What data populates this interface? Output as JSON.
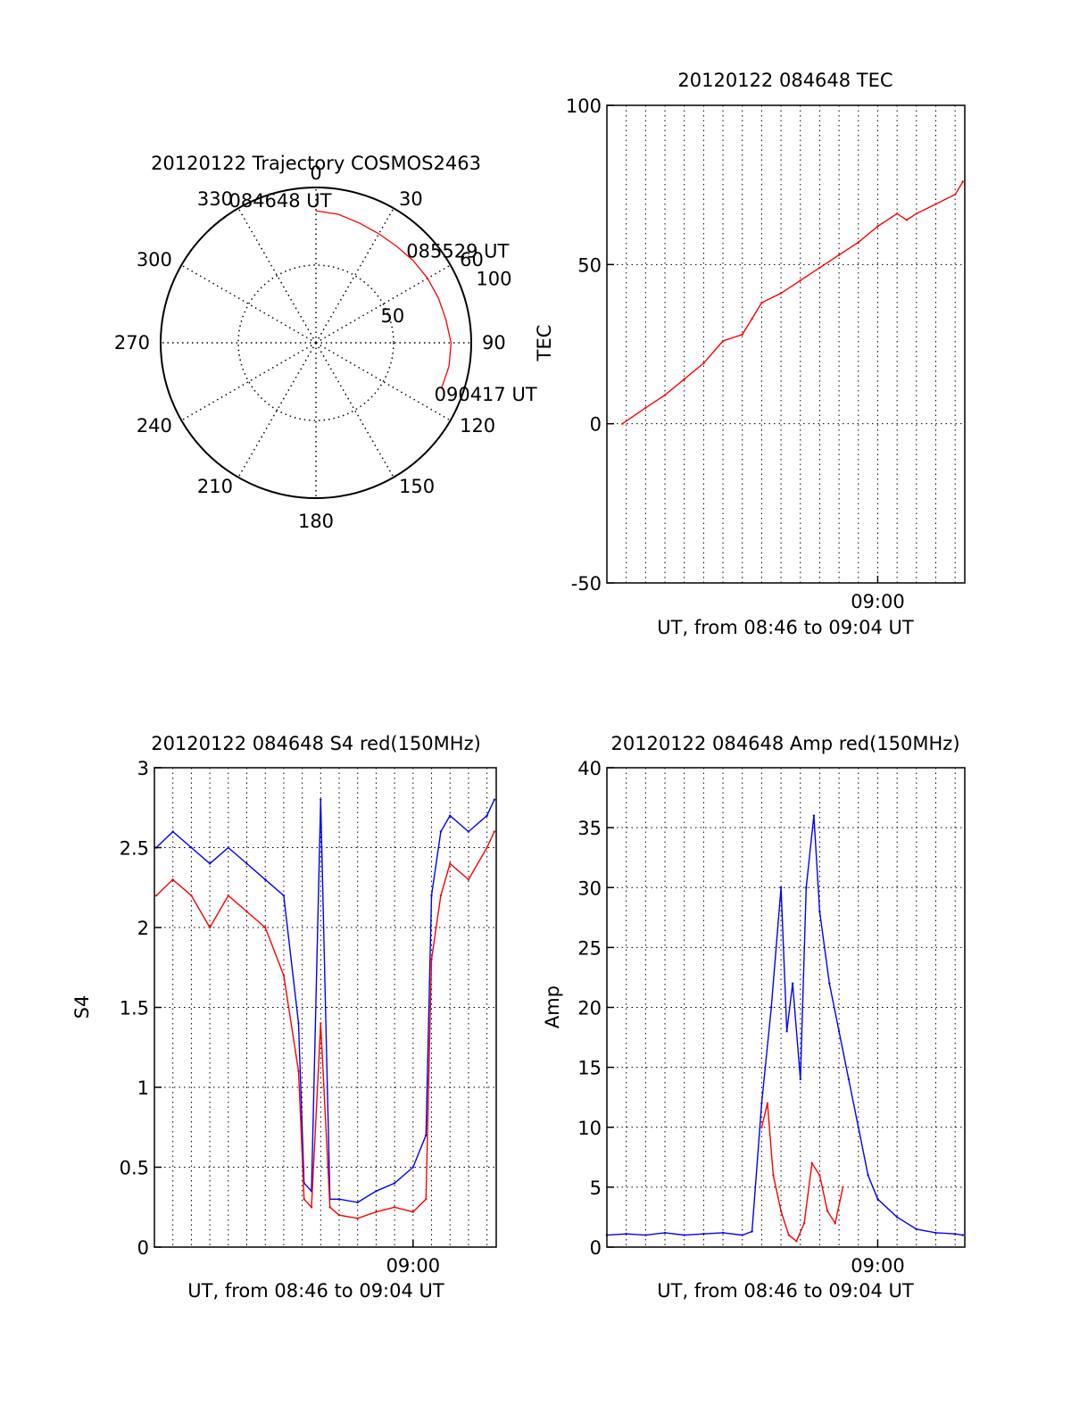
{
  "colors": {
    "primary": "#ff0000",
    "secondary": "#0000ff",
    "axis": "#000000",
    "grid": "#000000"
  },
  "chart_data": [
    {
      "id": "trajectory",
      "type": "polar",
      "title": "20120122 Trajectory COSMOS2463",
      "azimuth_labels": [
        "0",
        "30",
        "60",
        "90",
        "120",
        "150",
        "180",
        "210",
        "240",
        "270",
        "300",
        "330"
      ],
      "ring_labels": [
        "50",
        "100"
      ],
      "rlim": [
        0,
        100
      ],
      "grid": true,
      "side_label": "TEC",
      "track": [
        {
          "az": 0,
          "r": 85
        },
        {
          "az": 10,
          "r": 84
        },
        {
          "az": 20,
          "r": 82
        },
        {
          "az": 30,
          "r": 81
        },
        {
          "az": 40,
          "r": 81
        },
        {
          "az": 50,
          "r": 82
        },
        {
          "az": 60,
          "r": 83
        },
        {
          "az": 70,
          "r": 84
        },
        {
          "az": 80,
          "r": 85
        },
        {
          "az": 90,
          "r": 87
        },
        {
          "az": 100,
          "r": 87
        },
        {
          "az": 110,
          "r": 86
        }
      ],
      "annotations": [
        {
          "text": "084648 UT",
          "az": 0,
          "r": 85
        },
        {
          "text": "085529 UT",
          "az": 50,
          "r": 82
        },
        {
          "text": "090417 UT",
          "az": 110,
          "r": 86
        }
      ]
    },
    {
      "id": "tec",
      "type": "line",
      "title": "20120122 084648 TEC",
      "xlabel": "UT, from 08:46 to 09:04 UT",
      "xlim": [
        0,
        18.5
      ],
      "x_ticks": [
        {
          "x": 14,
          "label": "09:00"
        }
      ],
      "ylim": [
        -50,
        100
      ],
      "y_ticks": [
        -50,
        0,
        50,
        100
      ],
      "ylabel": "",
      "grid": true,
      "series": [
        {
          "color": "#ff0000",
          "x": [
            0.8,
            2,
            3,
            4,
            5,
            6,
            7,
            7.5,
            8,
            9,
            10,
            11,
            12,
            13,
            14,
            15,
            15.5,
            16,
            17,
            18,
            18.4
          ],
          "y": [
            0,
            5,
            9,
            14,
            19,
            26,
            28,
            33,
            38,
            41,
            45,
            49,
            53,
            57,
            62,
            66,
            64,
            66,
            69,
            72,
            76
          ]
        }
      ]
    },
    {
      "id": "s4",
      "type": "line",
      "title": "20120122 084648 S4 red(150MHz)",
      "xlabel": "UT, from 08:46 to 09:04 UT",
      "xlim": [
        0,
        18.5
      ],
      "x_ticks": [
        {
          "x": 14,
          "label": "09:00"
        }
      ],
      "ylim": [
        0,
        3
      ],
      "y_ticks": [
        0,
        0.5,
        1,
        1.5,
        2,
        2.5,
        3
      ],
      "ylabel": "S4",
      "grid": true,
      "series": [
        {
          "color": "#0000ff",
          "x": [
            0.1,
            1,
            2,
            3,
            4,
            5,
            6,
            7,
            7.8,
            8.1,
            8.5,
            9,
            9.5,
            10,
            11,
            12,
            13,
            14,
            14.7,
            15,
            15.5,
            16,
            17,
            18,
            18.4
          ],
          "y": [
            2.5,
            2.6,
            2.5,
            2.4,
            2.5,
            2.4,
            2.3,
            2.2,
            1.4,
            0.4,
            0.35,
            2.8,
            0.3,
            0.3,
            0.28,
            0.35,
            0.4,
            0.5,
            0.7,
            2.2,
            2.6,
            2.7,
            2.6,
            2.7,
            2.8
          ]
        },
        {
          "color": "#ff0000",
          "x": [
            0.1,
            1,
            2,
            3,
            4,
            5,
            6,
            7,
            7.8,
            8.1,
            8.5,
            9,
            9.5,
            10,
            11,
            12,
            13,
            14,
            14.7,
            15,
            15.5,
            16,
            17,
            18,
            18.4
          ],
          "y": [
            2.2,
            2.3,
            2.2,
            2.0,
            2.2,
            2.1,
            2.0,
            1.7,
            1.1,
            0.3,
            0.25,
            1.4,
            0.25,
            0.2,
            0.18,
            0.22,
            0.25,
            0.22,
            0.3,
            1.8,
            2.2,
            2.4,
            2.3,
            2.5,
            2.6
          ]
        }
      ]
    },
    {
      "id": "amp",
      "type": "line",
      "title": "20120122 084648 Amp red(150MHz)",
      "xlabel": "UT, from 08:46 to 09:04 UT",
      "xlim": [
        0,
        18.5
      ],
      "x_ticks": [
        {
          "x": 14,
          "label": "09:00"
        }
      ],
      "ylim": [
        0,
        40
      ],
      "y_ticks": [
        0,
        5,
        10,
        15,
        20,
        25,
        30,
        35,
        40
      ],
      "ylabel": "Amp",
      "grid": true,
      "series": [
        {
          "color": "#0000ff",
          "x": [
            0,
            1,
            2,
            3,
            4,
            5,
            6,
            7,
            7.5,
            8,
            8.5,
            9,
            9.3,
            9.6,
            10,
            10.3,
            10.7,
            11,
            11.5,
            12,
            12.5,
            13,
            13.5,
            14,
            15,
            16,
            17,
            18,
            18.4
          ],
          "y": [
            1,
            1.1,
            1,
            1.2,
            1,
            1.1,
            1.2,
            1,
            1.3,
            12,
            20,
            30,
            18,
            22,
            14,
            30,
            36,
            28,
            22,
            18,
            14,
            10,
            6,
            4,
            2.5,
            1.5,
            1.2,
            1.1,
            1
          ]
        },
        {
          "color": "#ff0000",
          "x": [
            8,
            8.3,
            8.6,
            9,
            9.4,
            9.8,
            10.2,
            10.6,
            11,
            11.4,
            11.8,
            12.2
          ],
          "y": [
            10,
            12,
            6,
            3,
            1,
            0.5,
            2,
            7,
            6,
            3,
            2,
            5
          ]
        }
      ]
    }
  ]
}
